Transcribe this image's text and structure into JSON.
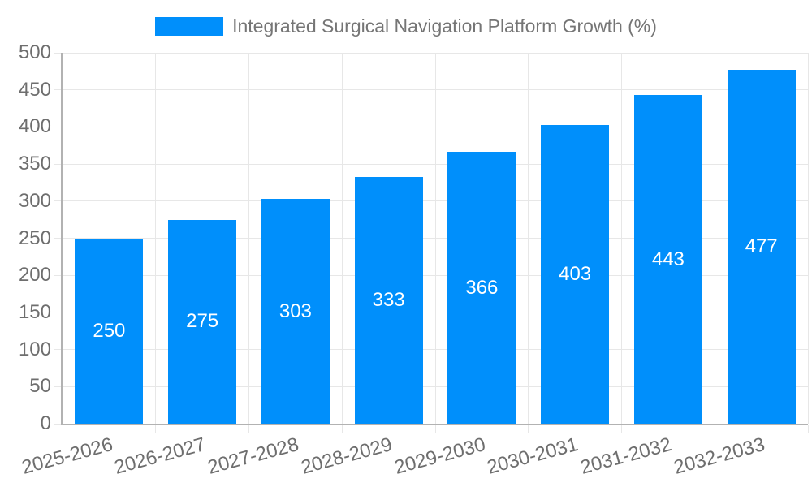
{
  "colors": {
    "bar": "#008FFB",
    "grid": "#e7e7e7",
    "axis": "#b2b2b2",
    "tick_label": "#6e6e6e",
    "legend_label": "#757575",
    "value_label": "#ffffff",
    "background": "#ffffff"
  },
  "chart_data": {
    "type": "bar",
    "title": "Integrated Surgical Navigation Platform Growth (%)",
    "legend_entries": [
      "Integrated Surgical Navigation Platform Growth (%)"
    ],
    "legend_position": "top",
    "categories": [
      "2025-2026",
      "2026-2027",
      "2027-2028",
      "2028-2029",
      "2029-2030",
      "2030-2031",
      "2031-2032",
      "2032-2033"
    ],
    "series": [
      {
        "name": "Integrated Surgical Navigation Platform Growth (%)",
        "values": [
          250,
          275,
          303,
          333,
          366,
          403,
          443,
          477
        ]
      }
    ],
    "xlabel": "",
    "ylabel": "",
    "ylim": [
      0,
      500
    ],
    "yticks": [
      0,
      50,
      100,
      150,
      200,
      250,
      300,
      350,
      400,
      450,
      500
    ],
    "grid": true,
    "bar_labels": true,
    "bar_width_ratio": 0.73,
    "x_label_rotation_deg": -15
  }
}
